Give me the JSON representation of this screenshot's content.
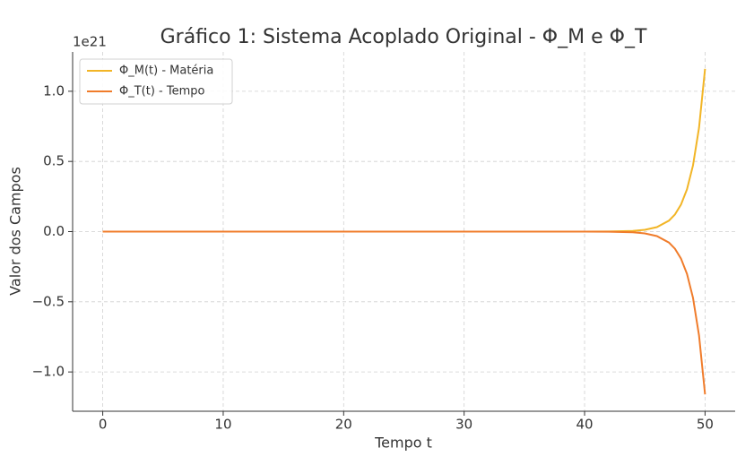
{
  "chart_data": {
    "type": "line",
    "title": "Gráfico 1: Sistema Acoplado Original - Φ_M e Φ_T",
    "x_label": "Tempo t",
    "y_label": "Valor dos Campos",
    "y_offset_label": "1e21",
    "x": [
      0,
      5,
      10,
      15,
      20,
      25,
      30,
      35,
      40,
      42,
      44,
      45,
      46,
      47,
      47.5,
      48,
      48.5,
      49,
      49.5,
      50
    ],
    "series": [
      {
        "name": "Φ_M(t) - Matéria",
        "color": "#f2b526",
        "values": [
          0,
          0,
          0,
          0,
          0,
          0,
          0,
          0,
          0.00014,
          0.00087,
          0.0052,
          0.0129,
          0.0317,
          0.078,
          0.122,
          0.192,
          0.301,
          0.472,
          0.74,
          1.16
        ]
      },
      {
        "name": "Φ_T(t) - Tempo",
        "color": "#f07c2b",
        "values": [
          0,
          0,
          0,
          0,
          0,
          0,
          0,
          0,
          -0.00014,
          -0.00087,
          -0.0052,
          -0.0129,
          -0.0317,
          -0.078,
          -0.122,
          -0.192,
          -0.301,
          -0.472,
          -0.74,
          -1.16
        ]
      }
    ],
    "xlim": [
      -2.5,
      52.5
    ],
    "xticks": [
      0,
      10,
      20,
      30,
      40,
      50
    ],
    "ylim": [
      -1.28,
      1.28
    ],
    "yticks": [
      {
        "value": -1,
        "label": "−1.0"
      },
      {
        "value": -0.5,
        "label": "−0.5"
      },
      {
        "value": 0,
        "label": "0.0"
      },
      0.5,
      {
        "value": 1,
        "label": "1.0"
      }
    ],
    "grid": true,
    "legend": "upper left"
  }
}
